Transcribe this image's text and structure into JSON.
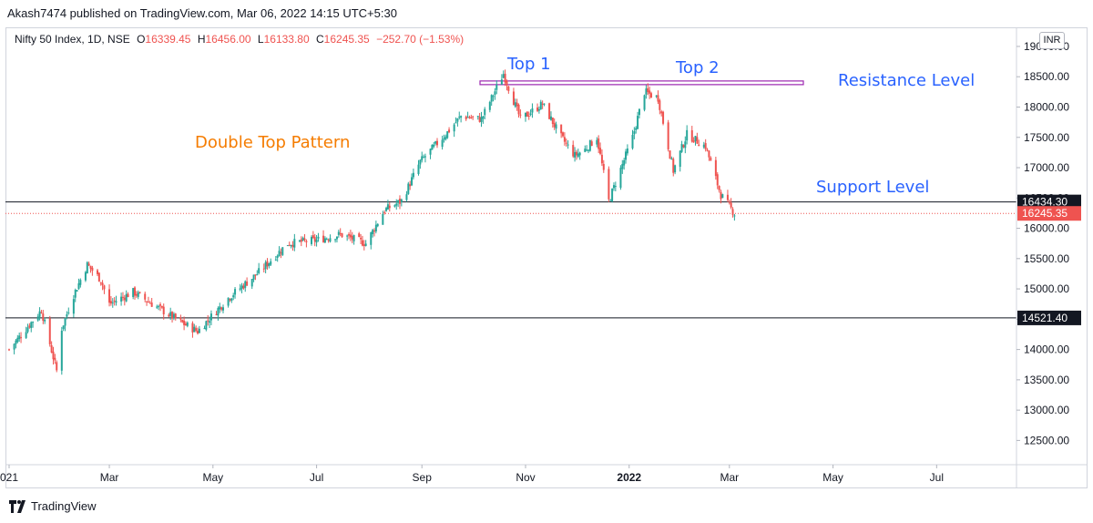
{
  "header": {
    "publisher": "Akash7474 published on TradingView.com, Mar 06, 2022 14:15 UTC+5:30"
  },
  "legend": {
    "symbol": "Nifty 50 Index, 1D, NSE",
    "o_label": "O",
    "o": "16339.45",
    "h_label": "H",
    "h": "16456.00",
    "l_label": "L",
    "l": "16133.80",
    "c_label": "C",
    "c": "16245.35",
    "change": "−252.70 (−1.53%)"
  },
  "currency": "INR",
  "footer": {
    "brand": "TradingView"
  },
  "colors": {
    "up": "#26a69a",
    "down": "#ef5350",
    "annotation_blue": "#2962ff",
    "annotation_orange": "#f57c00",
    "resistance": "#9c27b0"
  },
  "chart_data": {
    "type": "candlestick",
    "title": "Nifty 50 Index, 1D, NSE",
    "ylim": [
      12100,
      19300
    ],
    "y_ticks": [
      12500,
      13000,
      13500,
      14000,
      14500,
      15000,
      15500,
      16000,
      16500,
      17000,
      17500,
      18000,
      18500,
      19000
    ],
    "y_tick_labels": [
      "12500.00",
      "13000.00",
      "13500.00",
      "14000.00",
      "14500.00",
      "15000.00",
      "15500.00",
      "16000.00",
      "16500.00",
      "17000.00",
      "17500.00",
      "18000.00",
      "18500.00",
      "19000.00"
    ],
    "x_range": [
      "2021-01-01",
      "2022-08-17"
    ],
    "x_tick_labels": [
      {
        "date": "2021-01-01",
        "label": "021"
      },
      {
        "date": "2021-03-01",
        "label": "Mar"
      },
      {
        "date": "2021-05-01",
        "label": "May"
      },
      {
        "date": "2021-07-01",
        "label": "Jul"
      },
      {
        "date": "2021-09-01",
        "label": "Sep"
      },
      {
        "date": "2021-11-01",
        "label": "Nov"
      },
      {
        "date": "2022-01-01",
        "label": "2022"
      },
      {
        "date": "2022-03-01",
        "label": "Mar"
      },
      {
        "date": "2022-05-01",
        "label": "May"
      },
      {
        "date": "2022-07-01",
        "label": "Jul"
      }
    ],
    "series": [
      {
        "dates": [
          "2021-01-01",
          "2021-01-20",
          "2021-01-29",
          "2021-02-01",
          "2021-02-08",
          "2021-02-16",
          "2021-02-24",
          "2021-03-01",
          "2021-03-15",
          "2021-04-01",
          "2021-04-12",
          "2021-04-22",
          "2021-05-10",
          "2021-05-27",
          "2021-06-14",
          "2021-06-30",
          "2021-07-15",
          "2021-07-30",
          "2021-08-10",
          "2021-08-20",
          "2021-08-31",
          "2021-09-15",
          "2021-09-24",
          "2021-10-06",
          "2021-10-19",
          "2021-10-29",
          "2021-11-11",
          "2021-11-22",
          "2021-11-30",
          "2021-12-06",
          "2021-12-13",
          "2021-12-20",
          "2022-01-03",
          "2022-01-10",
          "2022-01-18",
          "2022-01-27",
          "2022-02-04",
          "2022-02-15",
          "2022-02-24",
          "2022-03-04"
        ],
        "close": [
          14000,
          14650,
          13650,
          14350,
          14900,
          15400,
          15150,
          14750,
          14950,
          14650,
          14450,
          14300,
          14850,
          15250,
          15750,
          15800,
          15900,
          15750,
          16300,
          16450,
          17100,
          17550,
          17850,
          17800,
          18550,
          17800,
          18050,
          17500,
          17200,
          17300,
          17500,
          16450,
          17500,
          18250,
          18150,
          16950,
          17550,
          17350,
          16550,
          16245
        ],
        "high": [
          14100,
          14750,
          14100,
          14450,
          15050,
          15500,
          15300,
          15000,
          15050,
          14850,
          14750,
          14700,
          15000,
          15350,
          15850,
          15950,
          15950,
          15900,
          16400,
          16550,
          17300,
          17600,
          17900,
          17950,
          18600,
          18200,
          18150,
          17700,
          17500,
          17450,
          17600,
          17200,
          17700,
          18350,
          18300,
          17450,
          17800,
          17600,
          17350,
          16850
        ]
      }
    ],
    "levels": [
      {
        "name": "Resistance Level",
        "value": 18400
      },
      {
        "name": "Support  Level",
        "value": 16434.3,
        "tag": "16434.30"
      },
      {
        "value": 14521.4,
        "tag": "14521.40"
      }
    ],
    "last_price_tag": "16245.35",
    "annotations": {
      "top1": "Top 1",
      "top2": "Top 2",
      "pattern": "Double Top Pattern",
      "resistance": "Resistance Level",
      "support": "Support  Level"
    }
  }
}
